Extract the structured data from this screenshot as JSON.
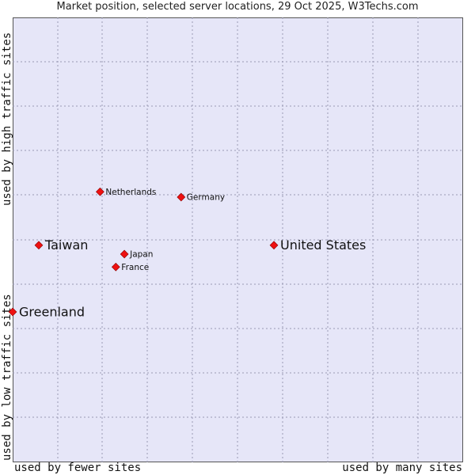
{
  "chart_data": {
    "type": "scatter",
    "title": "Market position, selected server locations, 29 Oct 2025, W3Techs.com",
    "xlabel_low": "used by fewer sites",
    "xlabel_high": "used by many sites",
    "ylabel_low": "used by low traffic sites",
    "ylabel_high": "used by high traffic sites",
    "xlim": [
      0,
      100
    ],
    "ylim": [
      0,
      100
    ],
    "grid": true,
    "points": [
      {
        "label": "Netherlands",
        "x": 19.4,
        "y": 60.8,
        "size": "small"
      },
      {
        "label": "Germany",
        "x": 37.4,
        "y": 59.6,
        "size": "small"
      },
      {
        "label": "Taiwan",
        "x": 5.8,
        "y": 48.8,
        "size": "large"
      },
      {
        "label": "United States",
        "x": 58.0,
        "y": 48.8,
        "size": "large"
      },
      {
        "label": "Japan",
        "x": 24.8,
        "y": 46.8,
        "size": "small"
      },
      {
        "label": "France",
        "x": 22.9,
        "y": 43.9,
        "size": "small"
      },
      {
        "label": "Greenland",
        "x": 0.0,
        "y": 33.8,
        "size": "large"
      }
    ]
  }
}
